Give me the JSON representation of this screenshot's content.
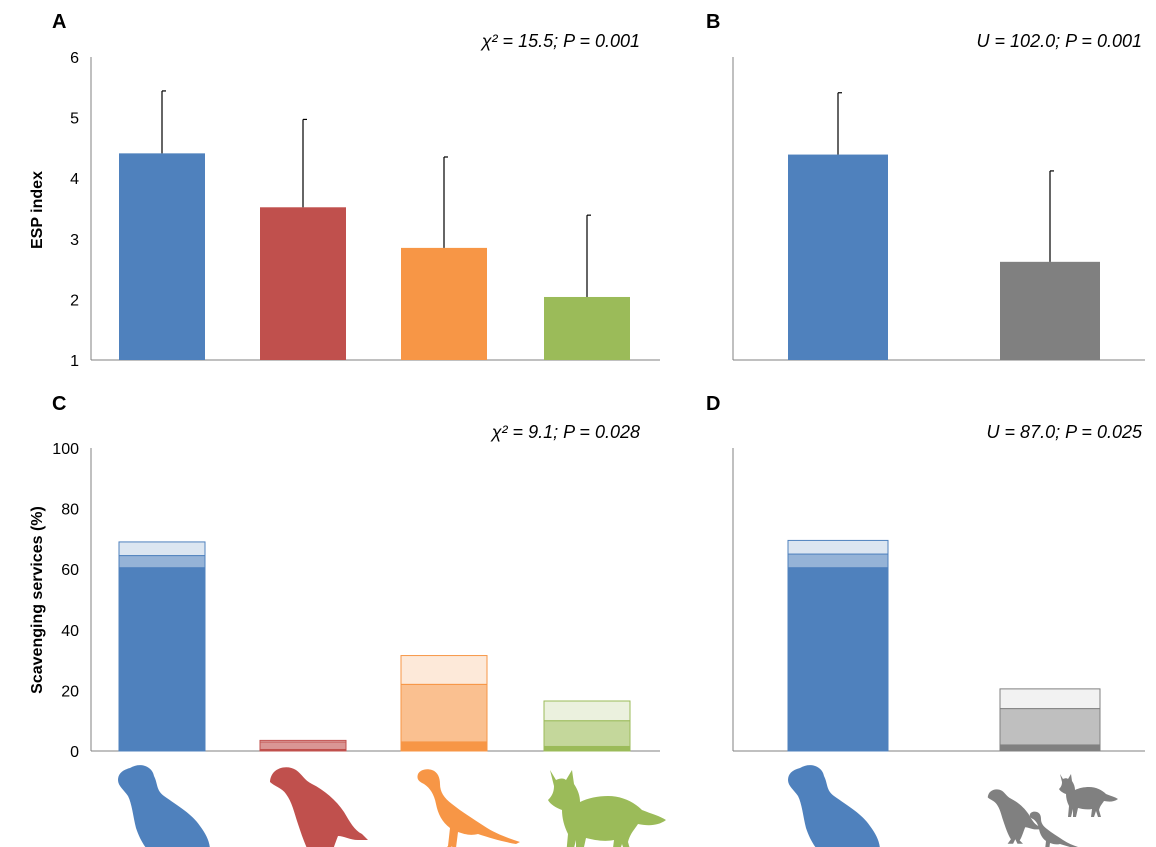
{
  "chart_data": [
    {
      "panel": "A",
      "type": "bar",
      "annotation": "χ² = 15.5; P = 0.001",
      "ylabel": "ESP index",
      "ylim": [
        1,
        6
      ],
      "yticks": [
        "1",
        "2",
        "3",
        "4",
        "5",
        "6"
      ],
      "categories": [
        "vulture-silhouette",
        "eagle-silhouette",
        "magpie-silhouette",
        "fox-silhouette"
      ],
      "values": [
        4.41,
        3.52,
        2.85,
        2.04
      ],
      "error_upper": [
        5.44,
        4.97,
        4.35,
        3.39
      ],
      "colors": [
        "#4f81bd",
        "#c0504d",
        "#f79646",
        "#9bbb59"
      ]
    },
    {
      "panel": "B",
      "type": "bar",
      "annotation": "U = 102.0; P = 0.001",
      "ylim": [
        1,
        6
      ],
      "categories": [
        "vulture-silhouette",
        "mesoscavengers-silhouette"
      ],
      "values": [
        4.39,
        2.62
      ],
      "error_upper": [
        5.41,
        4.12
      ],
      "colors": [
        "#4f81bd",
        "#808080"
      ]
    },
    {
      "panel": "C",
      "type": "bar",
      "stacked": true,
      "annotation": "χ² = 9.1; P = 0.028",
      "ylabel": "Scavenging services (%)",
      "ylim": [
        0,
        100
      ],
      "yticks": [
        "0",
        "20",
        "40",
        "60",
        "80",
        "100"
      ],
      "categories": [
        "vulture-silhouette",
        "eagle-silhouette",
        "magpie-silhouette",
        "fox-silhouette"
      ],
      "segments": [
        {
          "level": "dark",
          "values": [
            60.5,
            0.5,
            3.0,
            1.5
          ]
        },
        {
          "level": "medium",
          "values": [
            4.0,
            2.5,
            19.0,
            8.5
          ]
        },
        {
          "level": "light",
          "values": [
            4.5,
            0.5,
            9.5,
            6.5
          ]
        }
      ],
      "colors": {
        "dark": [
          "#4f81bd",
          "#c0504d",
          "#f79646",
          "#9bbb59"
        ],
        "medium": [
          "#95b3d7",
          "#da9694",
          "#fac090",
          "#c4d79b"
        ],
        "light": [
          "#dce6f1",
          "#f2dcdb",
          "#fde9d9",
          "#ebf1de"
        ]
      }
    },
    {
      "panel": "D",
      "type": "bar",
      "stacked": true,
      "annotation": "U = 87.0; P = 0.025",
      "ylim": [
        0,
        100
      ],
      "categories": [
        "vulture-silhouette",
        "mesoscavengers-silhouette"
      ],
      "segments": [
        {
          "level": "dark",
          "values": [
            60.5,
            2.0
          ]
        },
        {
          "level": "medium",
          "values": [
            4.5,
            12.0
          ]
        },
        {
          "level": "light",
          "values": [
            4.5,
            6.5
          ]
        }
      ],
      "colors": {
        "dark": [
          "#4f81bd",
          "#808080"
        ],
        "medium": [
          "#95b3d7",
          "#bfbfbf"
        ],
        "light": [
          "#dce6f1",
          "#f2f2f2"
        ]
      }
    }
  ]
}
